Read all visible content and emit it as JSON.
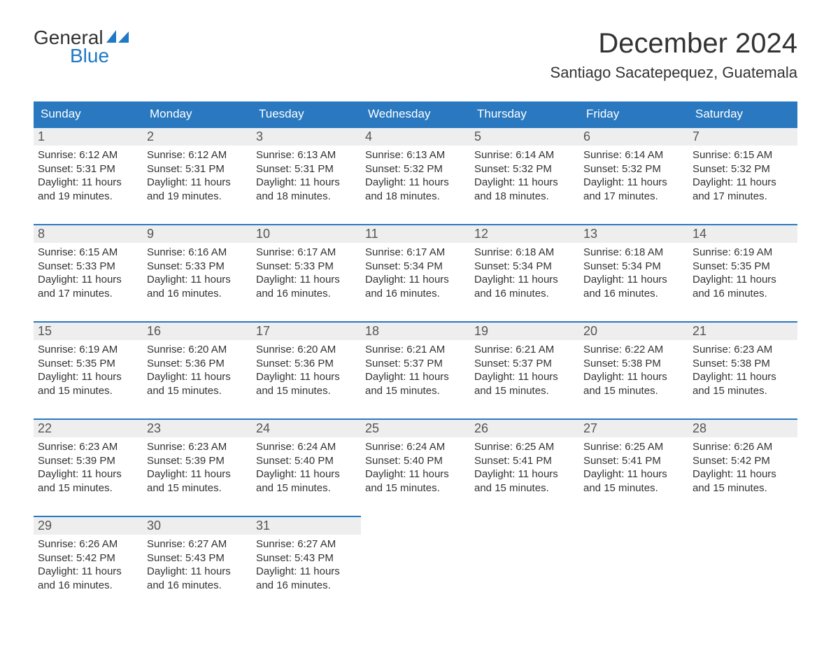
{
  "logo": {
    "text_general": "General",
    "text_blue": "Blue",
    "accent_color": "#1f79c4"
  },
  "title": "December 2024",
  "location": "Santiago Sacatepequez, Guatemala",
  "colors": {
    "header_bg": "#2a79c0",
    "header_text": "#ffffff",
    "daynum_bg": "#eeeeee",
    "daynum_border": "#2a79c0",
    "body_text": "#333333",
    "page_bg": "#ffffff"
  },
  "typography": {
    "title_fontsize": 40,
    "location_fontsize": 22,
    "weekday_fontsize": 17,
    "daynum_fontsize": 18,
    "body_fontsize": 15
  },
  "weekdays": [
    "Sunday",
    "Monday",
    "Tuesday",
    "Wednesday",
    "Thursday",
    "Friday",
    "Saturday"
  ],
  "weeks": [
    [
      {
        "n": "1",
        "sunrise": "Sunrise: 6:12 AM",
        "sunset": "Sunset: 5:31 PM",
        "d1": "Daylight: 11 hours",
        "d2": "and 19 minutes."
      },
      {
        "n": "2",
        "sunrise": "Sunrise: 6:12 AM",
        "sunset": "Sunset: 5:31 PM",
        "d1": "Daylight: 11 hours",
        "d2": "and 19 minutes."
      },
      {
        "n": "3",
        "sunrise": "Sunrise: 6:13 AM",
        "sunset": "Sunset: 5:31 PM",
        "d1": "Daylight: 11 hours",
        "d2": "and 18 minutes."
      },
      {
        "n": "4",
        "sunrise": "Sunrise: 6:13 AM",
        "sunset": "Sunset: 5:32 PM",
        "d1": "Daylight: 11 hours",
        "d2": "and 18 minutes."
      },
      {
        "n": "5",
        "sunrise": "Sunrise: 6:14 AM",
        "sunset": "Sunset: 5:32 PM",
        "d1": "Daylight: 11 hours",
        "d2": "and 18 minutes."
      },
      {
        "n": "6",
        "sunrise": "Sunrise: 6:14 AM",
        "sunset": "Sunset: 5:32 PM",
        "d1": "Daylight: 11 hours",
        "d2": "and 17 minutes."
      },
      {
        "n": "7",
        "sunrise": "Sunrise: 6:15 AM",
        "sunset": "Sunset: 5:32 PM",
        "d1": "Daylight: 11 hours",
        "d2": "and 17 minutes."
      }
    ],
    [
      {
        "n": "8",
        "sunrise": "Sunrise: 6:15 AM",
        "sunset": "Sunset: 5:33 PM",
        "d1": "Daylight: 11 hours",
        "d2": "and 17 minutes."
      },
      {
        "n": "9",
        "sunrise": "Sunrise: 6:16 AM",
        "sunset": "Sunset: 5:33 PM",
        "d1": "Daylight: 11 hours",
        "d2": "and 16 minutes."
      },
      {
        "n": "10",
        "sunrise": "Sunrise: 6:17 AM",
        "sunset": "Sunset: 5:33 PM",
        "d1": "Daylight: 11 hours",
        "d2": "and 16 minutes."
      },
      {
        "n": "11",
        "sunrise": "Sunrise: 6:17 AM",
        "sunset": "Sunset: 5:34 PM",
        "d1": "Daylight: 11 hours",
        "d2": "and 16 minutes."
      },
      {
        "n": "12",
        "sunrise": "Sunrise: 6:18 AM",
        "sunset": "Sunset: 5:34 PM",
        "d1": "Daylight: 11 hours",
        "d2": "and 16 minutes."
      },
      {
        "n": "13",
        "sunrise": "Sunrise: 6:18 AM",
        "sunset": "Sunset: 5:34 PM",
        "d1": "Daylight: 11 hours",
        "d2": "and 16 minutes."
      },
      {
        "n": "14",
        "sunrise": "Sunrise: 6:19 AM",
        "sunset": "Sunset: 5:35 PM",
        "d1": "Daylight: 11 hours",
        "d2": "and 16 minutes."
      }
    ],
    [
      {
        "n": "15",
        "sunrise": "Sunrise: 6:19 AM",
        "sunset": "Sunset: 5:35 PM",
        "d1": "Daylight: 11 hours",
        "d2": "and 15 minutes."
      },
      {
        "n": "16",
        "sunrise": "Sunrise: 6:20 AM",
        "sunset": "Sunset: 5:36 PM",
        "d1": "Daylight: 11 hours",
        "d2": "and 15 minutes."
      },
      {
        "n": "17",
        "sunrise": "Sunrise: 6:20 AM",
        "sunset": "Sunset: 5:36 PM",
        "d1": "Daylight: 11 hours",
        "d2": "and 15 minutes."
      },
      {
        "n": "18",
        "sunrise": "Sunrise: 6:21 AM",
        "sunset": "Sunset: 5:37 PM",
        "d1": "Daylight: 11 hours",
        "d2": "and 15 minutes."
      },
      {
        "n": "19",
        "sunrise": "Sunrise: 6:21 AM",
        "sunset": "Sunset: 5:37 PM",
        "d1": "Daylight: 11 hours",
        "d2": "and 15 minutes."
      },
      {
        "n": "20",
        "sunrise": "Sunrise: 6:22 AM",
        "sunset": "Sunset: 5:38 PM",
        "d1": "Daylight: 11 hours",
        "d2": "and 15 minutes."
      },
      {
        "n": "21",
        "sunrise": "Sunrise: 6:23 AM",
        "sunset": "Sunset: 5:38 PM",
        "d1": "Daylight: 11 hours",
        "d2": "and 15 minutes."
      }
    ],
    [
      {
        "n": "22",
        "sunrise": "Sunrise: 6:23 AM",
        "sunset": "Sunset: 5:39 PM",
        "d1": "Daylight: 11 hours",
        "d2": "and 15 minutes."
      },
      {
        "n": "23",
        "sunrise": "Sunrise: 6:23 AM",
        "sunset": "Sunset: 5:39 PM",
        "d1": "Daylight: 11 hours",
        "d2": "and 15 minutes."
      },
      {
        "n": "24",
        "sunrise": "Sunrise: 6:24 AM",
        "sunset": "Sunset: 5:40 PM",
        "d1": "Daylight: 11 hours",
        "d2": "and 15 minutes."
      },
      {
        "n": "25",
        "sunrise": "Sunrise: 6:24 AM",
        "sunset": "Sunset: 5:40 PM",
        "d1": "Daylight: 11 hours",
        "d2": "and 15 minutes."
      },
      {
        "n": "26",
        "sunrise": "Sunrise: 6:25 AM",
        "sunset": "Sunset: 5:41 PM",
        "d1": "Daylight: 11 hours",
        "d2": "and 15 minutes."
      },
      {
        "n": "27",
        "sunrise": "Sunrise: 6:25 AM",
        "sunset": "Sunset: 5:41 PM",
        "d1": "Daylight: 11 hours",
        "d2": "and 15 minutes."
      },
      {
        "n": "28",
        "sunrise": "Sunrise: 6:26 AM",
        "sunset": "Sunset: 5:42 PM",
        "d1": "Daylight: 11 hours",
        "d2": "and 15 minutes."
      }
    ],
    [
      {
        "n": "29",
        "sunrise": "Sunrise: 6:26 AM",
        "sunset": "Sunset: 5:42 PM",
        "d1": "Daylight: 11 hours",
        "d2": "and 16 minutes."
      },
      {
        "n": "30",
        "sunrise": "Sunrise: 6:27 AM",
        "sunset": "Sunset: 5:43 PM",
        "d1": "Daylight: 11 hours",
        "d2": "and 16 minutes."
      },
      {
        "n": "31",
        "sunrise": "Sunrise: 6:27 AM",
        "sunset": "Sunset: 5:43 PM",
        "d1": "Daylight: 11 hours",
        "d2": "and 16 minutes."
      },
      null,
      null,
      null,
      null
    ]
  ]
}
